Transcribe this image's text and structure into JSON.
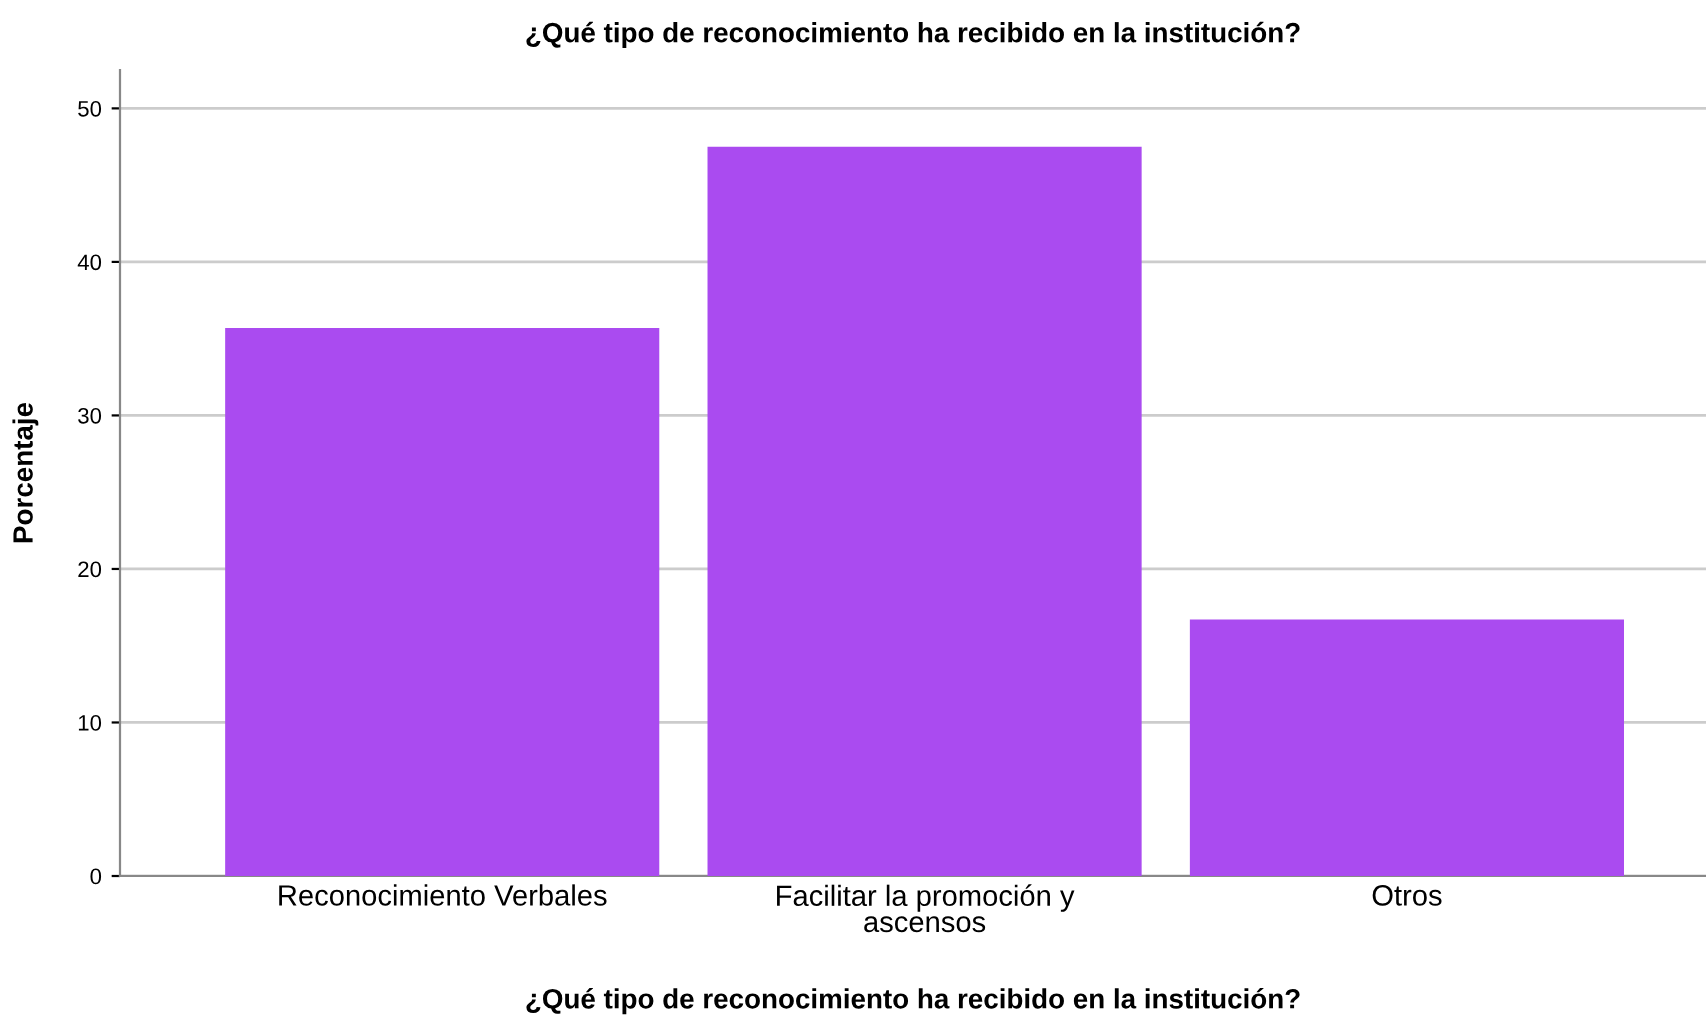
{
  "chart_data": {
    "type": "bar",
    "title": "¿Qué tipo de reconocimiento ha recibido en la institución?",
    "xlabel": "¿Qué tipo de reconocimiento ha recibido en la institución?",
    "ylabel": "Porcentaje",
    "categories": [
      "Reconocimiento Verbales",
      "Facilitar la promoción y\nascensos",
      "Otros"
    ],
    "values": [
      35.7,
      47.5,
      16.7
    ],
    "color": "#aa4bf0",
    "ylim": [
      0,
      52.5
    ],
    "yticks": [
      0,
      10,
      20,
      30,
      40,
      50
    ],
    "grid": "y",
    "legend": false
  }
}
